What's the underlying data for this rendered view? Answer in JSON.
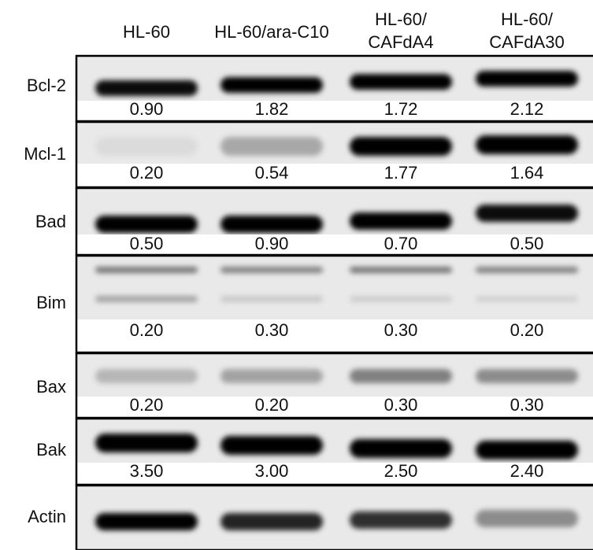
{
  "headers": [
    [
      "HL-60"
    ],
    [
      "HL-60/ara-C10"
    ],
    [
      "HL-60/",
      "CAFdA4"
    ],
    [
      "HL-60/",
      "CAFdA30"
    ]
  ],
  "rows": [
    {
      "label": "Bcl-2",
      "values": [
        "0.90",
        "1.82",
        "1.72",
        "2.12"
      ]
    },
    {
      "label": "Mcl-1",
      "values": [
        "0.20",
        "0.54",
        "1.77",
        "1.64"
      ]
    },
    {
      "label": "Bad",
      "values": [
        "0.50",
        "0.90",
        "0.70",
        "0.50"
      ]
    },
    {
      "label": "Bim",
      "values": [
        "0.20",
        "0.30",
        "0.30",
        "0.20"
      ]
    },
    {
      "label": "Bax",
      "values": [
        "0.20",
        "0.20",
        "0.30",
        "0.30"
      ]
    },
    {
      "label": "Bak",
      "values": [
        "3.50",
        "3.00",
        "2.50",
        "2.40"
      ]
    },
    {
      "label": "Actin"
    }
  ]
}
